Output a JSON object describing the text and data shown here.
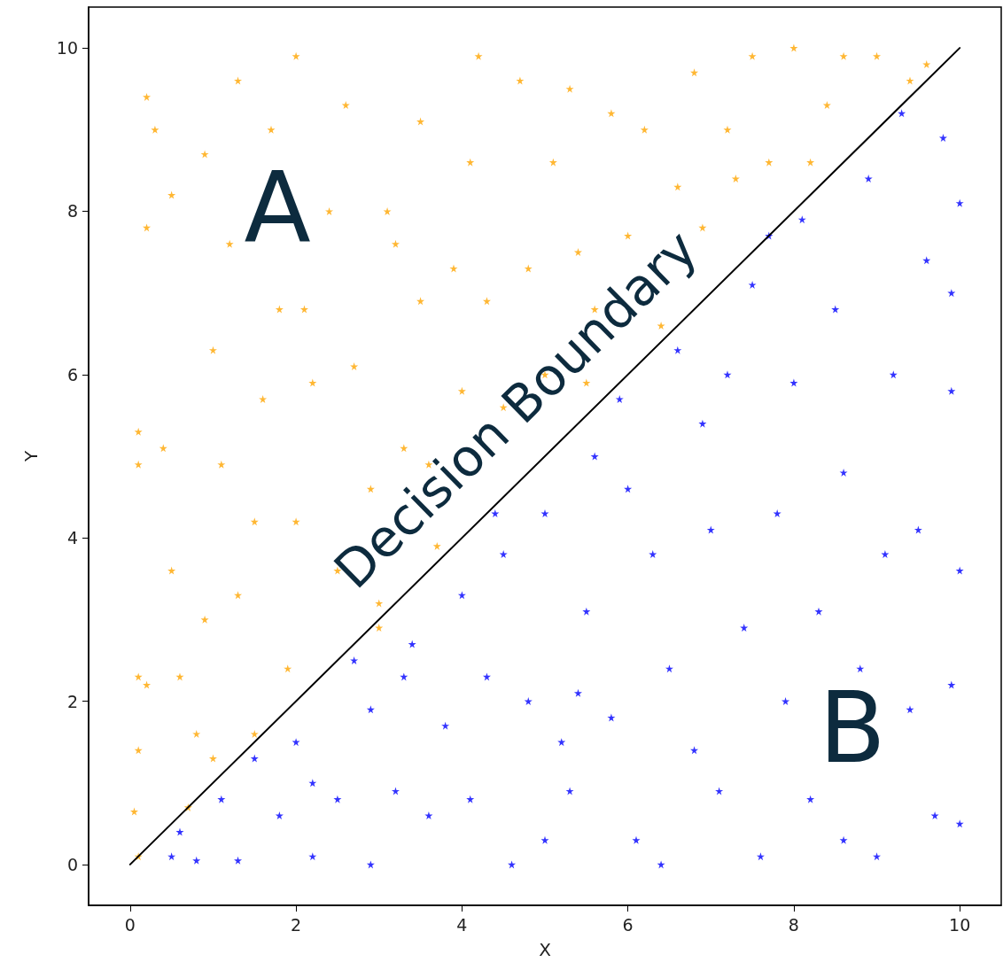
{
  "chart_data": {
    "type": "scatter",
    "xlabel": "X",
    "ylabel": "Y",
    "xlim": [
      -0.5,
      10.5
    ],
    "ylim": [
      -0.5,
      10.5
    ],
    "xticks": [
      0,
      2,
      4,
      6,
      8,
      10
    ],
    "yticks": [
      0,
      2,
      4,
      6,
      8,
      10
    ],
    "grid": false,
    "series": [
      {
        "marker": "star",
        "color": "#ffa500",
        "x": [
          0.1,
          0.05,
          0.1,
          0.1,
          0.2,
          0.1,
          0.1,
          0.2,
          0.2,
          0.3,
          0.5,
          0.4,
          0.5,
          0.6,
          0.7,
          0.8,
          0.9,
          0.9,
          1.0,
          1.1,
          1.2,
          1.3,
          1.3,
          1.5,
          1.5,
          1.6,
          1.7,
          1.8,
          1.9,
          2.0,
          2.0,
          2.1,
          2.2,
          2.4,
          2.5,
          2.6,
          2.7,
          2.9,
          3.0,
          3.1,
          3.2,
          3.3,
          3.5,
          3.5,
          3.6,
          3.7,
          3.9,
          4.0,
          4.1,
          4.2,
          4.3,
          4.5,
          4.7,
          4.8,
          5.0,
          5.1,
          5.3,
          5.4,
          5.6,
          5.8,
          6.0,
          6.2,
          6.4,
          6.6,
          6.8,
          6.9,
          7.2,
          7.3,
          7.5,
          7.7,
          8.0,
          8.2,
          8.4,
          8.6,
          9.0,
          9.4,
          9.6,
          5.5,
          3.0,
          1.0
        ],
        "values": [
          0.1,
          0.65,
          1.4,
          2.3,
          2.2,
          4.9,
          5.3,
          7.8,
          9.4,
          9.0,
          8.2,
          5.1,
          3.6,
          2.3,
          0.7,
          1.6,
          3.0,
          8.7,
          6.3,
          4.9,
          7.6,
          9.6,
          3.3,
          4.2,
          1.6,
          5.7,
          9.0,
          6.8,
          2.4,
          9.9,
          4.2,
          6.8,
          5.9,
          8.0,
          3.6,
          9.3,
          6.1,
          4.6,
          2.9,
          8.0,
          7.6,
          5.1,
          9.1,
          6.9,
          4.9,
          3.9,
          7.3,
          5.8,
          8.6,
          9.9,
          6.9,
          5.6,
          9.6,
          7.3,
          6.0,
          8.6,
          9.5,
          7.5,
          6.8,
          9.2,
          7.7,
          9.0,
          6.6,
          8.3,
          9.7,
          7.8,
          9.0,
          8.4,
          9.9,
          8.6,
          10.0,
          8.6,
          9.3,
          9.9,
          9.9,
          9.6,
          9.8,
          5.9,
          3.2,
          1.3
        ]
      },
      {
        "marker": "star",
        "color": "#0000ff",
        "x": [
          0.5,
          0.6,
          0.8,
          1.3,
          1.5,
          1.8,
          2.0,
          2.2,
          2.2,
          2.5,
          2.7,
          2.9,
          2.9,
          3.2,
          3.4,
          3.6,
          3.8,
          4.0,
          4.1,
          4.3,
          4.5,
          4.6,
          4.8,
          5.0,
          5.0,
          5.2,
          5.4,
          5.5,
          5.6,
          5.8,
          6.0,
          6.1,
          6.3,
          6.4,
          6.5,
          6.6,
          6.8,
          7.0,
          7.1,
          7.2,
          7.4,
          7.6,
          7.7,
          7.8,
          7.9,
          8.0,
          8.2,
          8.3,
          8.5,
          8.6,
          8.6,
          8.8,
          8.9,
          9.0,
          9.1,
          9.2,
          9.3,
          9.4,
          9.5,
          9.6,
          9.7,
          9.8,
          9.9,
          9.9,
          10.0,
          10.0,
          10.0,
          9.9,
          5.3,
          6.9,
          3.3,
          1.1,
          7.5,
          8.1,
          4.4,
          5.9
        ],
        "values": [
          0.1,
          0.4,
          0.05,
          0.05,
          1.3,
          0.6,
          1.5,
          0.1,
          1.0,
          0.8,
          2.5,
          0.0,
          1.9,
          0.9,
          2.7,
          0.6,
          1.7,
          3.3,
          0.8,
          2.3,
          3.8,
          0.0,
          2.0,
          0.3,
          4.3,
          1.5,
          2.1,
          3.1,
          5.0,
          1.8,
          4.6,
          0.3,
          3.8,
          0.0,
          2.4,
          6.3,
          1.4,
          4.1,
          0.9,
          6.0,
          2.9,
          0.1,
          7.7,
          4.3,
          2.0,
          5.9,
          0.8,
          3.1,
          6.8,
          0.3,
          4.8,
          2.4,
          8.4,
          0.1,
          3.8,
          6.0,
          9.2,
          1.9,
          4.1,
          7.4,
          0.6,
          8.9,
          2.2,
          5.8,
          3.6,
          8.1,
          0.5,
          7.0,
          0.9,
          5.4,
          2.3,
          0.8,
          7.1,
          7.9,
          4.3,
          5.7
        ]
      },
      {
        "type": "line",
        "marker": "none",
        "color": "#000000",
        "line_style": "solid",
        "x": [
          0,
          10
        ],
        "values": [
          0,
          10
        ]
      }
    ],
    "annotations": [
      "A",
      "B",
      "Decision Boundary"
    ]
  }
}
